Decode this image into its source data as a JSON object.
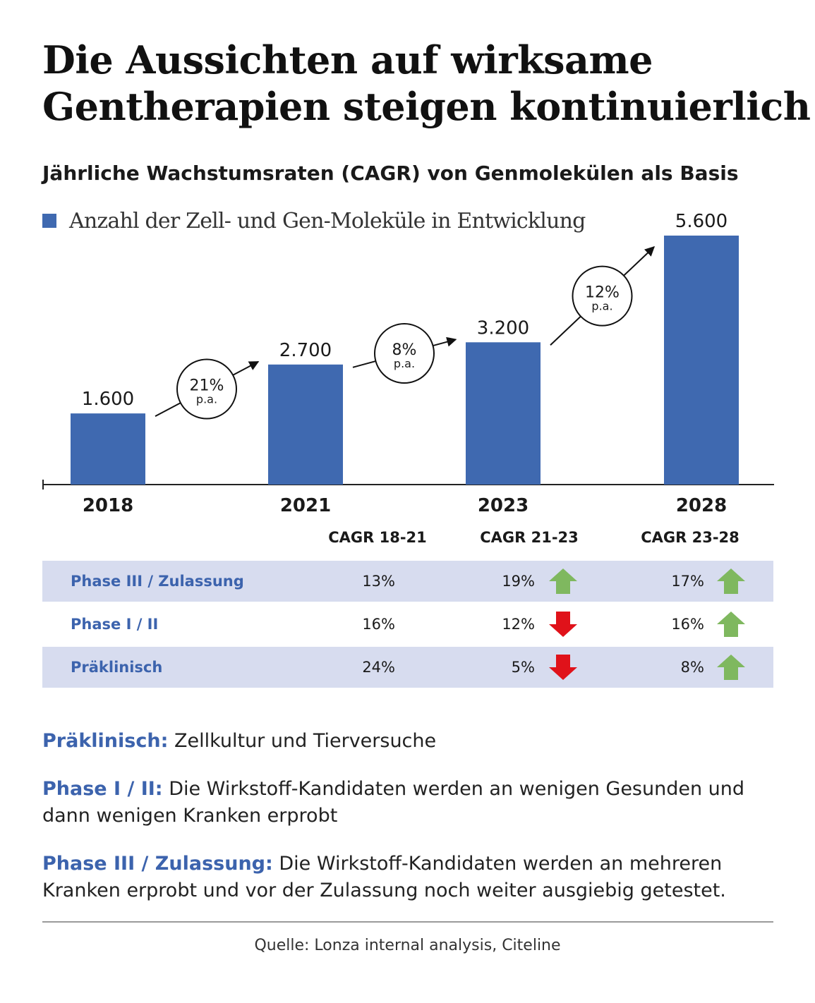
{
  "header": {
    "title_line1": "Die Aussichten auf wirksame",
    "title_line2": "Gentherapien steigen kontinuierlich",
    "subtitle": "Jährliche Wachstumsraten (CAGR) von Genmolekülen als Basis"
  },
  "legend": {
    "label": "Anzahl der Zell- und Gen-Moleküle in Entwicklung",
    "color": "#3f69b0"
  },
  "colors": {
    "bar": "#3f69b0",
    "row_label": "#3c63ad",
    "row_shade": "#d7dcef",
    "up_arrow": "#7fb85f",
    "down_arrow": "#e0121a"
  },
  "chart_data": {
    "type": "bar",
    "categories": [
      "2018",
      "2021",
      "2023",
      "2028"
    ],
    "values": [
      1600,
      2700,
      3200,
      5600
    ],
    "value_labels": [
      "1.600",
      "2.700",
      "3.200",
      "5.600"
    ],
    "ylim": [
      0,
      5600
    ],
    "growth_annotations": [
      {
        "rate": "21%",
        "unit": "p.a."
      },
      {
        "rate": "8%",
        "unit": "p.a."
      },
      {
        "rate": "12%",
        "unit": "p.a."
      }
    ],
    "grid": false
  },
  "table": {
    "columns": [
      "CAGR 18-21",
      "CAGR 21-23",
      "CAGR 23-28"
    ],
    "rows": [
      {
        "label": "Phase III / Zulassung",
        "values": [
          "13%",
          "19%",
          "17%"
        ],
        "trend_21_23": "up-arrow-icon",
        "trend_23_28": "up-arrow-icon"
      },
      {
        "label": "Phase I / II",
        "values": [
          "16%",
          "12%",
          "16%"
        ],
        "trend_21_23": "down-arrow-icon",
        "trend_23_28": "up-arrow-icon"
      },
      {
        "label": "Präklinisch",
        "values": [
          "24%",
          "5%",
          "8%"
        ],
        "trend_21_23": "down-arrow-icon",
        "trend_23_28": "up-arrow-icon"
      }
    ]
  },
  "notes": [
    {
      "term": "Präklinisch:",
      "text": " Zellkultur und Tierversuche"
    },
    {
      "term": "Phase I / II:",
      "text": " Die Wirkstoff-Kandidaten werden an wenigen Gesunden und dann wenigen Kranken erprobt"
    },
    {
      "term": "Phase III / Zulassung:",
      "text": " Die Wirkstoff-Kandidaten werden an mehreren Kranken erprobt und vor der Zulassung noch weiter ausgiebig getestet."
    }
  ],
  "source": "Quelle: Lonza internal analysis, Citeline"
}
